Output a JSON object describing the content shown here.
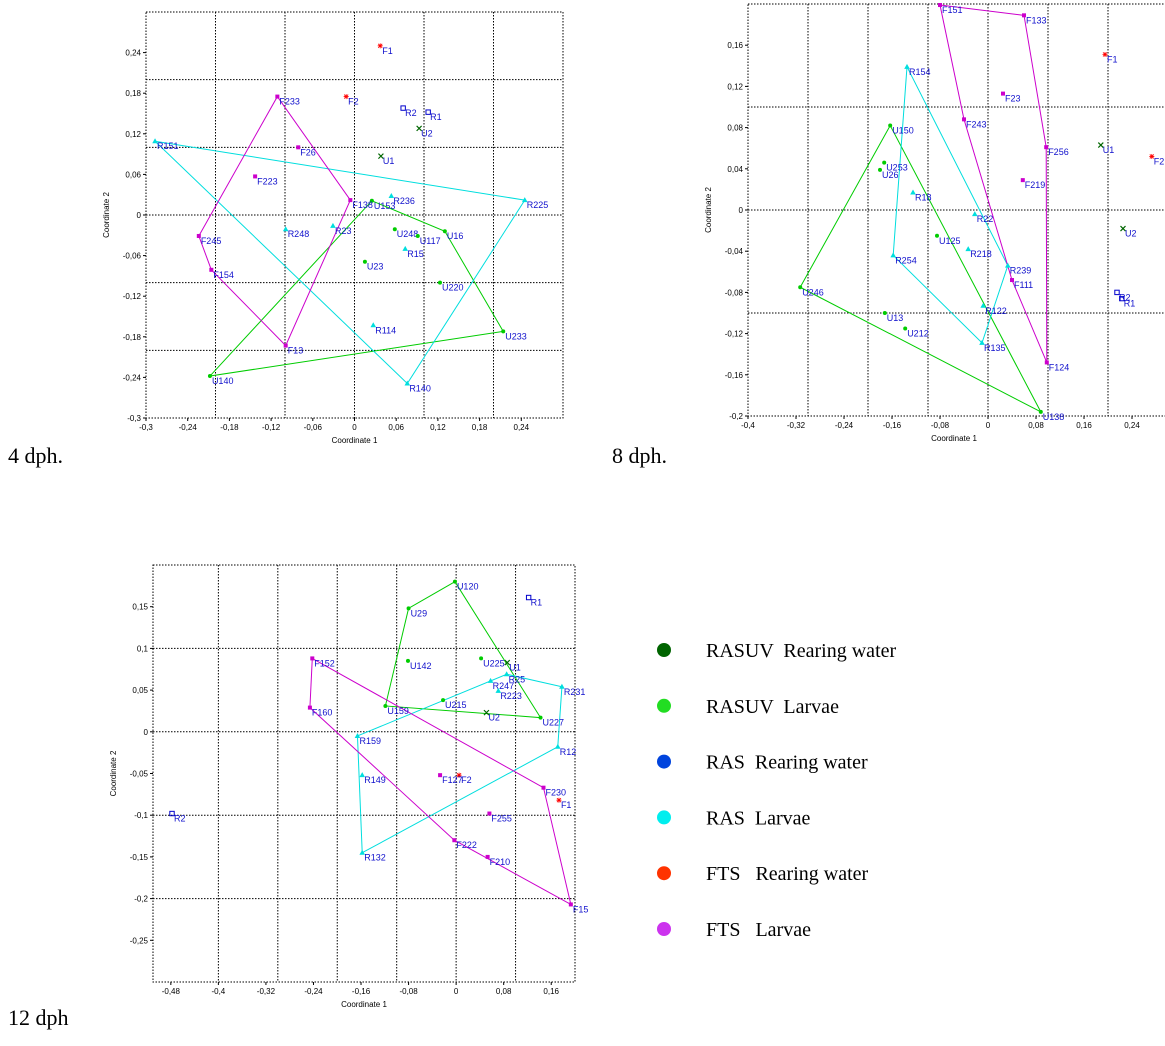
{
  "chart_data": [
    {
      "type": "scatter",
      "caption": "4 dph.",
      "xlabel": "Coordinate 1",
      "ylabel": "Coordinate 2",
      "xlim": [
        -0.3,
        0.3
      ],
      "ylim": [
        -0.3,
        0.3
      ],
      "xticks": [
        {
          "value": -0.3,
          "label": "-0,3"
        },
        {
          "value": -0.24,
          "label": "-0,24"
        },
        {
          "value": -0.18,
          "label": "-0,18"
        },
        {
          "value": -0.12,
          "label": "-0,12"
        },
        {
          "value": -0.06,
          "label": "-0,06"
        },
        0,
        {
          "value": 0.06,
          "label": "0,06"
        },
        {
          "value": 0.12,
          "label": "0,12"
        },
        {
          "value": 0.18,
          "label": "0,18"
        },
        {
          "value": 0.24,
          "label": "0,24"
        }
      ],
      "yticks": [
        {
          "value": -0.3,
          "label": "-0,3"
        },
        {
          "value": -0.24,
          "label": "-0,24"
        },
        {
          "value": -0.18,
          "label": "-0,18"
        },
        {
          "value": -0.12,
          "label": "-0,12"
        },
        {
          "value": -0.06,
          "label": "-0,06"
        },
        0,
        {
          "value": 0.06,
          "label": "0,06"
        },
        {
          "value": 0.12,
          "label": "0,12"
        },
        {
          "value": 0.18,
          "label": "0,18"
        },
        {
          "value": 0.24,
          "label": "0,24"
        }
      ],
      "xgrid": [
        -0.2,
        -0.1,
        0,
        0.1,
        0.2
      ],
      "ygrid": [
        -0.2,
        -0.1,
        0,
        0.1,
        0.2
      ],
      "series": [
        {
          "color": "#006600",
          "marker": "x",
          "hull": false,
          "labels": [
            "U1",
            "U2"
          ],
          "x": [
            0.038,
            0.093
          ],
          "y": [
            0.087,
            0.128
          ]
        },
        {
          "color": "#00cc00",
          "marker": "circle",
          "hull": true,
          "labels": [
            "U153",
            "U16",
            "U248",
            "U117",
            "U23",
            "U220",
            "U233",
            "U140"
          ],
          "x": [
            0.025,
            0.13,
            0.058,
            0.091,
            0.015,
            0.123,
            0.214,
            -0.208
          ],
          "y": [
            0.021,
            -0.024,
            -0.021,
            -0.031,
            -0.069,
            -0.1,
            -0.172,
            -0.238
          ]
        },
        {
          "color": "#0000cc",
          "marker": "square-open",
          "hull": false,
          "labels": [
            "R1",
            "R2"
          ],
          "x": [
            0.106,
            0.07
          ],
          "y": [
            0.152,
            0.158
          ]
        },
        {
          "color": "#00dede",
          "marker": "triangle",
          "hull": true,
          "labels": [
            "R151",
            "R236",
            "R225",
            "R248",
            "R23",
            "R15",
            "R114",
            "R140"
          ],
          "x": [
            -0.287,
            0.053,
            0.245,
            -0.099,
            -0.031,
            0.073,
            0.027,
            0.076
          ],
          "y": [
            0.109,
            0.028,
            0.022,
            -0.021,
            -0.016,
            -0.05,
            -0.163,
            -0.249
          ]
        },
        {
          "color": "#ff0000",
          "marker": "asterisk",
          "hull": false,
          "labels": [
            "F1",
            "F2"
          ],
          "x": [
            0.037,
            -0.012
          ],
          "y": [
            0.25,
            0.175
          ]
        },
        {
          "color": "#cc00cc",
          "marker": "square",
          "hull": true,
          "labels": [
            "F233",
            "F26",
            "F223",
            "F138",
            "F245",
            "F154",
            "F13"
          ],
          "x": [
            -0.111,
            -0.081,
            -0.143,
            -0.006,
            -0.224,
            -0.206,
            -0.099
          ],
          "y": [
            0.175,
            0.1,
            0.057,
            0.022,
            -0.031,
            -0.081,
            -0.193
          ]
        }
      ]
    },
    {
      "type": "scatter",
      "caption": "8 dph.",
      "xlabel": "Coordinate 1",
      "ylabel": "Coordinate 2",
      "xlim": [
        -0.4,
        0.3
      ],
      "ylim": [
        -0.2,
        0.2
      ],
      "xticks": [
        {
          "value": -0.4,
          "label": "-0,4"
        },
        {
          "value": -0.32,
          "label": "-0,32"
        },
        {
          "value": -0.24,
          "label": "-0,24"
        },
        {
          "value": -0.16,
          "label": "-0,16"
        },
        {
          "value": -0.08,
          "label": "-0,08"
        },
        0,
        {
          "value": 0.08,
          "label": "0,08"
        },
        {
          "value": 0.16,
          "label": "0,16"
        },
        {
          "value": 0.24,
          "label": "0,24"
        }
      ],
      "yticks": [
        {
          "value": -0.2,
          "label": "-0,2"
        },
        {
          "value": -0.16,
          "label": "-0,16"
        },
        {
          "value": -0.12,
          "label": "-0,12"
        },
        {
          "value": -0.08,
          "label": "-0,08"
        },
        {
          "value": -0.04,
          "label": "-0,04"
        },
        0,
        {
          "value": 0.04,
          "label": "0,04"
        },
        {
          "value": 0.08,
          "label": "0,08"
        },
        {
          "value": 0.12,
          "label": "0,12"
        },
        {
          "value": 0.16,
          "label": "0,16"
        }
      ],
      "xgrid": [
        -0.3,
        -0.2,
        -0.1,
        0,
        0.1,
        0.2
      ],
      "ygrid": [
        -0.1,
        0,
        0.1
      ],
      "series": [
        {
          "color": "#006600",
          "marker": "x",
          "hull": false,
          "labels": [
            "U1",
            "U2"
          ],
          "x": [
            0.188,
            0.225
          ],
          "y": [
            0.063,
            -0.018
          ]
        },
        {
          "color": "#00cc00",
          "marker": "circle",
          "hull": true,
          "labels": [
            "U150",
            "U253",
            "U26",
            "U125",
            "U246",
            "U13",
            "U212",
            "U138"
          ],
          "x": [
            -0.163,
            -0.173,
            -0.18,
            -0.085,
            -0.313,
            -0.172,
            -0.138,
            0.088
          ],
          "y": [
            0.082,
            0.046,
            0.039,
            -0.025,
            -0.075,
            -0.1,
            -0.115,
            -0.196
          ]
        },
        {
          "color": "#0000cc",
          "marker": "square-open",
          "hull": false,
          "labels": [
            "R2",
            "R1"
          ],
          "x": [
            0.215,
            0.223
          ],
          "y": [
            -0.08,
            -0.086
          ]
        },
        {
          "color": "#00dede",
          "marker": "triangle",
          "hull": true,
          "labels": [
            "R154",
            "R18",
            "R22",
            "R218",
            "R254",
            "R239",
            "R122",
            "R135"
          ],
          "x": [
            -0.135,
            -0.125,
            -0.022,
            -0.033,
            -0.158,
            0.033,
            -0.008,
            -0.01
          ],
          "y": [
            0.139,
            0.017,
            -0.004,
            -0.038,
            -0.044,
            -0.054,
            -0.093,
            -0.129
          ]
        },
        {
          "color": "#ff0000",
          "marker": "asterisk",
          "hull": false,
          "labels": [
            "F1",
            "F2"
          ],
          "x": [
            0.195,
            0.273
          ],
          "y": [
            0.151,
            0.052
          ]
        },
        {
          "color": "#cc00cc",
          "marker": "square",
          "hull": true,
          "labels": [
            "F151",
            "F133",
            "F23",
            "F243",
            "F256",
            "F219",
            "F111",
            "F124"
          ],
          "x": [
            -0.08,
            0.06,
            0.025,
            -0.04,
            0.097,
            0.058,
            0.04,
            0.098
          ],
          "y": [
            0.199,
            0.189,
            0.113,
            0.088,
            0.061,
            0.029,
            -0.068,
            -0.148
          ]
        }
      ]
    },
    {
      "type": "scatter",
      "caption": "12 dph",
      "xlabel": "Coordinate 1",
      "ylabel": "Coordinate 2",
      "xlim": [
        -0.51,
        0.2
      ],
      "ylim": [
        -0.3,
        0.2
      ],
      "xticks": [
        {
          "value": -0.48,
          "label": "-0,48"
        },
        {
          "value": -0.4,
          "label": "-0,4"
        },
        {
          "value": -0.32,
          "label": "-0,32"
        },
        {
          "value": -0.24,
          "label": "-0,24"
        },
        {
          "value": -0.16,
          "label": "-0,16"
        },
        {
          "value": -0.08,
          "label": "-0,08"
        },
        0,
        {
          "value": 0.08,
          "label": "0,08"
        },
        {
          "value": 0.16,
          "label": "0,16"
        }
      ],
      "yticks": [
        {
          "value": -0.25,
          "label": "-0,25"
        },
        {
          "value": -0.2,
          "label": "-0,2"
        },
        {
          "value": -0.15,
          "label": "-0,15"
        },
        {
          "value": -0.1,
          "label": "-0,1"
        },
        {
          "value": -0.05,
          "label": "-0,05"
        },
        0,
        {
          "value": 0.05,
          "label": "0,05"
        },
        {
          "value": 0.1,
          "label": "0,1"
        },
        {
          "value": 0.15,
          "label": "0,15"
        }
      ],
      "xgrid": [
        -0.4,
        -0.3,
        -0.2,
        -0.1,
        0,
        0.1
      ],
      "ygrid": [
        -0.2,
        -0.1,
        0,
        0.1
      ],
      "series": [
        {
          "color": "#006600",
          "marker": "x",
          "hull": false,
          "labels": [
            "U1",
            "U2"
          ],
          "x": [
            0.086,
            0.051
          ],
          "y": [
            0.083,
            0.023
          ]
        },
        {
          "color": "#00cc00",
          "marker": "circle",
          "hull": true,
          "labels": [
            "U120",
            "U29",
            "U142",
            "U225",
            "U215",
            "U159",
            "U227"
          ],
          "x": [
            -0.002,
            -0.08,
            -0.081,
            0.042,
            -0.022,
            -0.119,
            0.142
          ],
          "y": [
            0.18,
            0.148,
            0.085,
            0.088,
            0.038,
            0.031,
            0.017
          ]
        },
        {
          "color": "#0000cc",
          "marker": "square-open",
          "hull": false,
          "labels": [
            "R1",
            "R2"
          ],
          "x": [
            0.122,
            -0.478
          ],
          "y": [
            0.161,
            -0.098
          ]
        },
        {
          "color": "#00dede",
          "marker": "triangle",
          "hull": true,
          "labels": [
            "R25",
            "R247",
            "R223",
            "R231",
            "R12",
            "R159",
            "R149",
            "R132"
          ],
          "x": [
            0.085,
            0.058,
            0.071,
            0.178,
            0.171,
            -0.166,
            -0.158,
            -0.158
          ],
          "y": [
            0.069,
            0.061,
            0.049,
            0.054,
            -0.018,
            -0.005,
            -0.052,
            -0.145
          ]
        },
        {
          "color": "#ff0000",
          "marker": "asterisk",
          "hull": false,
          "labels": [
            "F1",
            "F2"
          ],
          "x": [
            0.173,
            0.005
          ],
          "y": [
            -0.082,
            -0.052
          ]
        },
        {
          "color": "#cc00cc",
          "marker": "square",
          "hull": true,
          "labels": [
            "F152",
            "F160",
            "F127",
            "F230",
            "F255",
            "F222",
            "F210",
            "F15"
          ],
          "x": [
            -0.242,
            -0.246,
            -0.027,
            0.147,
            0.056,
            -0.003,
            0.053,
            0.193
          ],
          "y": [
            0.088,
            0.029,
            -0.052,
            -0.067,
            -0.098,
            -0.13,
            -0.15,
            -0.207
          ]
        }
      ]
    }
  ],
  "legend": [
    {
      "name": "RASUV  Rearing water",
      "color": "#006400"
    },
    {
      "name": "RASUV  Larvae",
      "color": "#22dd22"
    },
    {
      "name": "RAS  Rearing water",
      "color": "#0044dd"
    },
    {
      "name": "RAS  Larvae",
      "color": "#00eeee"
    },
    {
      "name": "FTS   Rearing water",
      "color": "#ff3300"
    },
    {
      "name": "FTS   Larvae",
      "color": "#cc33ee"
    }
  ]
}
